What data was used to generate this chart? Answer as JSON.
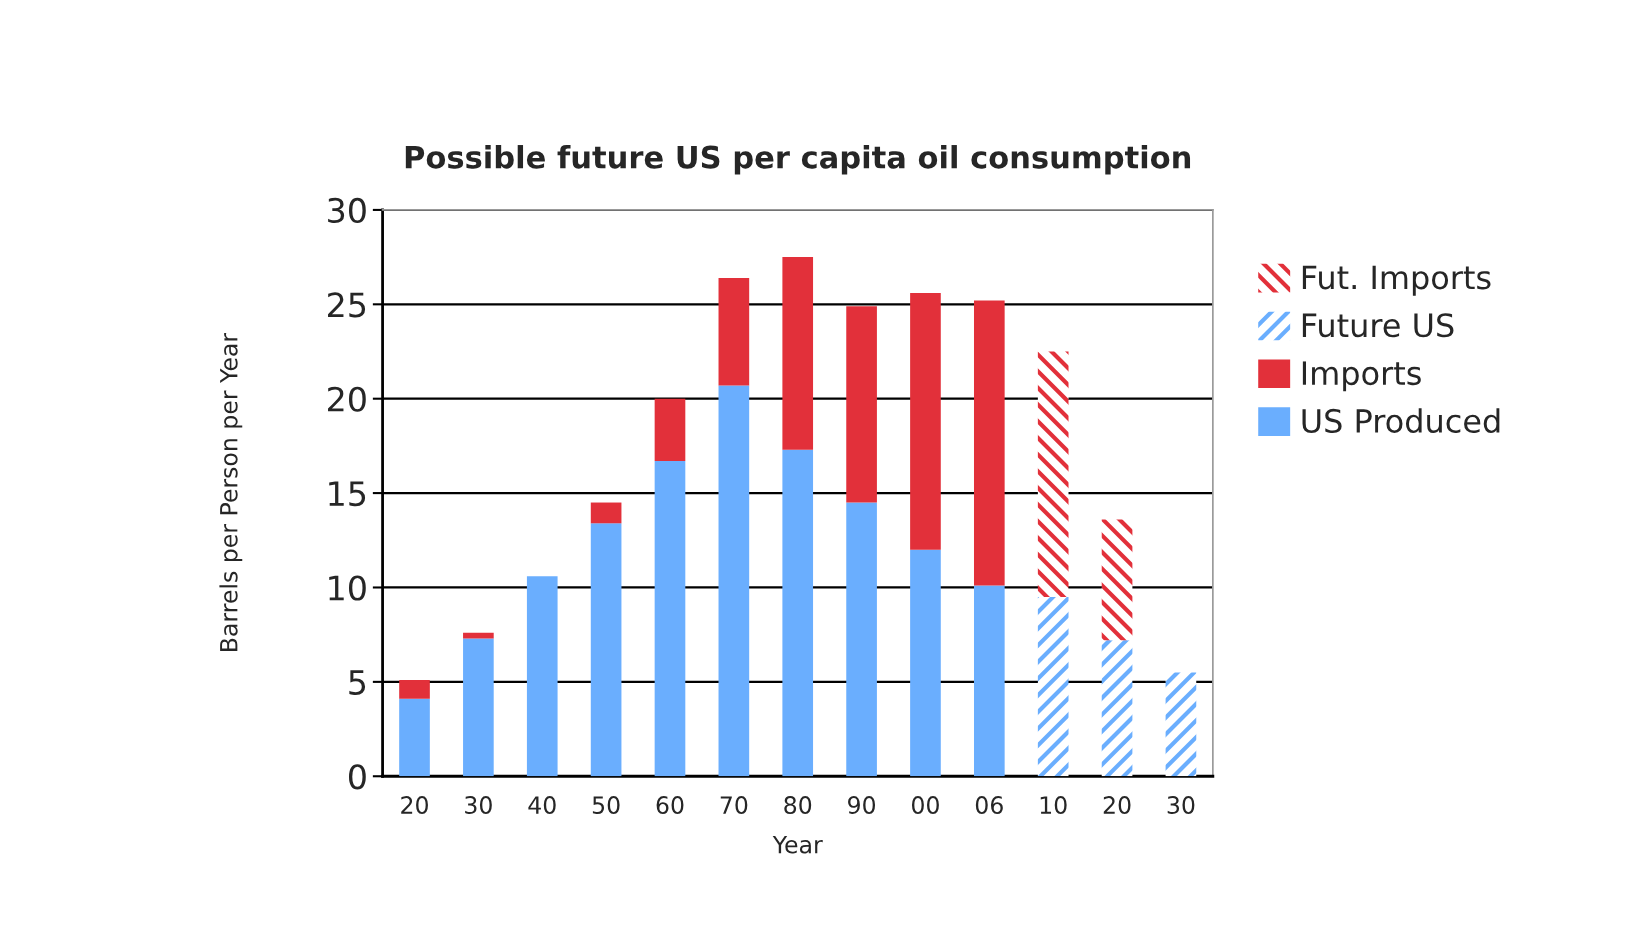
{
  "chart_data": {
    "type": "bar",
    "title": "Possible future US per capita oil consumption",
    "xlabel": "Year",
    "ylabel": "Barrels per Person per Year",
    "categories": [
      "20",
      "30",
      "40",
      "50",
      "60",
      "70",
      "80",
      "90",
      "00",
      "06",
      "10",
      "20",
      "30"
    ],
    "stacked": true,
    "ylim": [
      0,
      30
    ],
    "yticks": [
      0,
      5,
      10,
      15,
      20,
      25,
      30
    ],
    "grid": "y",
    "legend": "right",
    "series": [
      {
        "name": "US Produced",
        "color": "#6aaefe",
        "values": [
          4.1,
          7.3,
          10.6,
          13.4,
          16.7,
          20.7,
          17.3,
          14.5,
          12.0,
          10.1,
          null,
          null,
          null
        ]
      },
      {
        "name": "Imports",
        "color": "#e2303a",
        "values": [
          1.0,
          0.3,
          null,
          1.1,
          3.3,
          5.7,
          10.2,
          10.4,
          13.6,
          15.1,
          null,
          null,
          null
        ]
      },
      {
        "name": "Future US",
        "color": "#6aaefe",
        "values": [
          null,
          null,
          null,
          null,
          null,
          null,
          null,
          null,
          null,
          null,
          9.5,
          7.2,
          5.5
        ]
      },
      {
        "name": "Fut. Imports",
        "color": "#e2303a",
        "values": [
          null,
          null,
          null,
          null,
          null,
          null,
          null,
          null,
          null,
          null,
          13.0,
          6.4,
          null
        ]
      }
    ]
  }
}
